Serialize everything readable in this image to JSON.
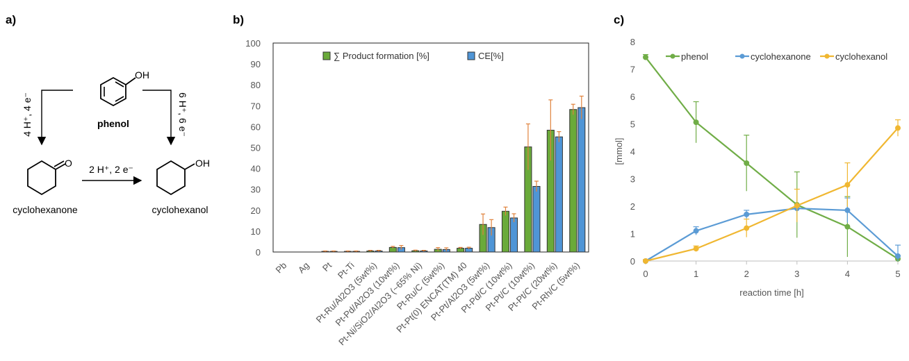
{
  "panel_labels": {
    "a": "a)",
    "b": "b)",
    "c": "c)"
  },
  "scheme": {
    "phenol": "phenol",
    "oh": "OH",
    "o": "O",
    "cyclohexanone": "cyclohexanone",
    "cyclohexanol": "cyclohexanol",
    "left_arrow_label": "4 H⁺, 4 e⁻",
    "right_arrow_label": "6 H⁺, 6 e⁻",
    "bottom_arrow_label": "2 H⁺, 2 e⁻"
  },
  "chart_data": [
    {
      "type": "bar",
      "categories": [
        "Pb",
        "Ag",
        "Pt",
        "Pt-Ti",
        "Pt-Ru/Al2O3 (5wt%)",
        "Pt-Pd/Al2O3 (10wt%)",
        "Pt-Ni/SiO2/Al2O3 (~65% Ni)",
        "Pt-Ru/C (5wt%)",
        "Pt-Pt(0) ENCAT(TM) 40",
        "Pt-Pt/Al2O3 (5wt%)",
        "Pt-Pd/C (10wt%)",
        "Pt-Pt/C (10wt%)",
        "Pt-Pt/C (20wt%)",
        "Pt-Rh/C (5wt%)"
      ],
      "series": [
        {
          "name": "∑ Product formation [%]",
          "color": "#6aaa3a",
          "values": [
            0,
            0,
            0.3,
            0.3,
            0.5,
            2.2,
            0.6,
            1.3,
            1.8,
            13.2,
            19.5,
            50.3,
            58.3,
            68.2
          ],
          "errors": [
            0,
            0,
            0.2,
            0.2,
            0.3,
            0.5,
            0.3,
            0.8,
            0.4,
            5.0,
            2.0,
            11.0,
            14.5,
            2.5
          ]
        },
        {
          "name": "CE[%]",
          "color": "#4f95d6",
          "values": [
            0,
            0,
            0.3,
            0.3,
            0.5,
            2.1,
            0.5,
            1.2,
            1.8,
            11.7,
            16.3,
            31.4,
            55.1,
            69.1
          ],
          "errors": [
            0,
            0,
            0.2,
            0.2,
            0.3,
            1.0,
            0.3,
            0.8,
            0.5,
            3.8,
            2.0,
            2.5,
            2.5,
            5.5
          ]
        }
      ],
      "ylim": [
        0,
        100
      ],
      "yticks": [
        0,
        10,
        20,
        30,
        40,
        50,
        60,
        70,
        80,
        90,
        100
      ],
      "error_color": "#e0823c",
      "legend_position": "top-left, inside"
    },
    {
      "type": "line",
      "x": [
        0,
        1,
        2,
        3,
        4,
        5
      ],
      "xlabel": "reaction time [h]",
      "ylabel": "[mmol]",
      "xlim": [
        0,
        5
      ],
      "ylim": [
        0,
        8
      ],
      "yticks": [
        0,
        1,
        2,
        3,
        4,
        5,
        6,
        7,
        8
      ],
      "series": [
        {
          "name": "phenol",
          "color": "#70ad47",
          "values": [
            7.43,
            5.06,
            3.57,
            2.05,
            1.25,
            0.08
          ],
          "errors": [
            0.1,
            0.75,
            1.02,
            1.2,
            1.1,
            0.12
          ]
        },
        {
          "name": "cyclohexanone",
          "color": "#5b9bd5",
          "values": [
            0.0,
            1.1,
            1.7,
            1.92,
            1.85,
            0.18
          ],
          "errors": [
            0.05,
            0.15,
            0.15,
            0.12,
            0.45,
            0.4
          ]
        },
        {
          "name": "cyclohexanol",
          "color": "#f0b731",
          "values": [
            0.0,
            0.45,
            1.2,
            2.02,
            2.78,
            4.85
          ],
          "errors": [
            0.05,
            0.1,
            0.33,
            0.6,
            0.8,
            0.3
          ]
        }
      ],
      "legend_position": "top, inside"
    }
  ]
}
